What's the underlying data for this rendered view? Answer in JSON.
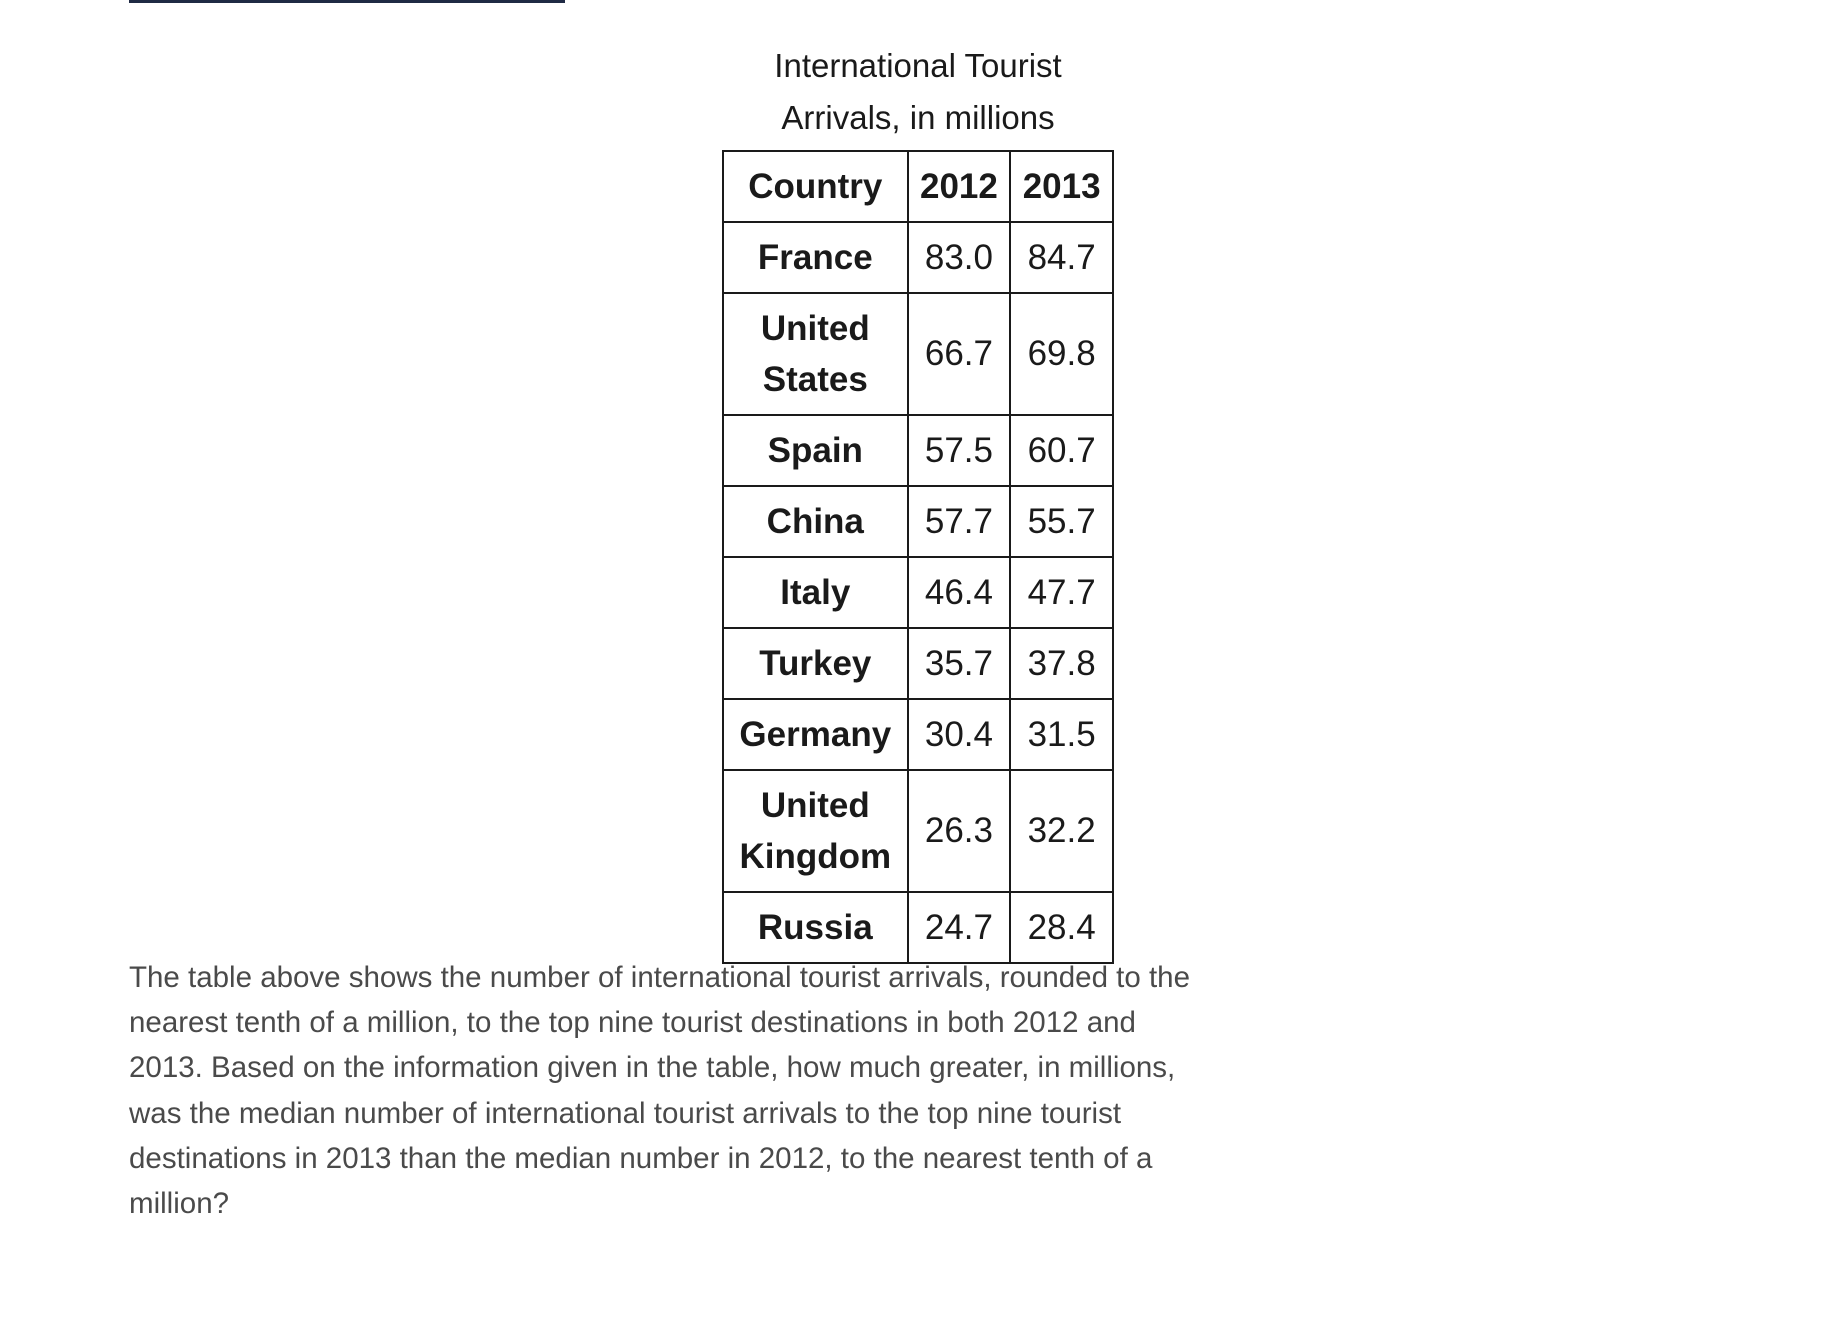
{
  "table": {
    "caption": "International Tourist Arrivals, in millions",
    "headers": [
      "Country",
      "2012",
      "2013"
    ],
    "rows": [
      {
        "country": "France",
        "y2012": "83.0",
        "y2013": "84.7"
      },
      {
        "country": "United States",
        "y2012": "66.7",
        "y2013": "69.8"
      },
      {
        "country": "Spain",
        "y2012": "57.5",
        "y2013": "60.7"
      },
      {
        "country": "China",
        "y2012": "57.7",
        "y2013": "55.7"
      },
      {
        "country": "Italy",
        "y2012": "46.4",
        "y2013": "47.7"
      },
      {
        "country": "Turkey",
        "y2012": "35.7",
        "y2013": "37.8"
      },
      {
        "country": "Germany",
        "y2012": "30.4",
        "y2013": "31.5"
      },
      {
        "country": "United Kingdom",
        "y2012": "26.3",
        "y2013": "32.2"
      },
      {
        "country": "Russia",
        "y2012": "24.7",
        "y2013": "28.4"
      }
    ]
  },
  "question": "The table above shows the number of international tourist arrivals, rounded to the nearest tenth of a million, to the top nine tourist destinations in both 2012 and 2013. Based on the information given in the table, how much greater, in millions, was the median number of international tourist arrivals to the top nine tourist destinations in 2013 than the median number in 2012, to the nearest tenth of a million?"
}
